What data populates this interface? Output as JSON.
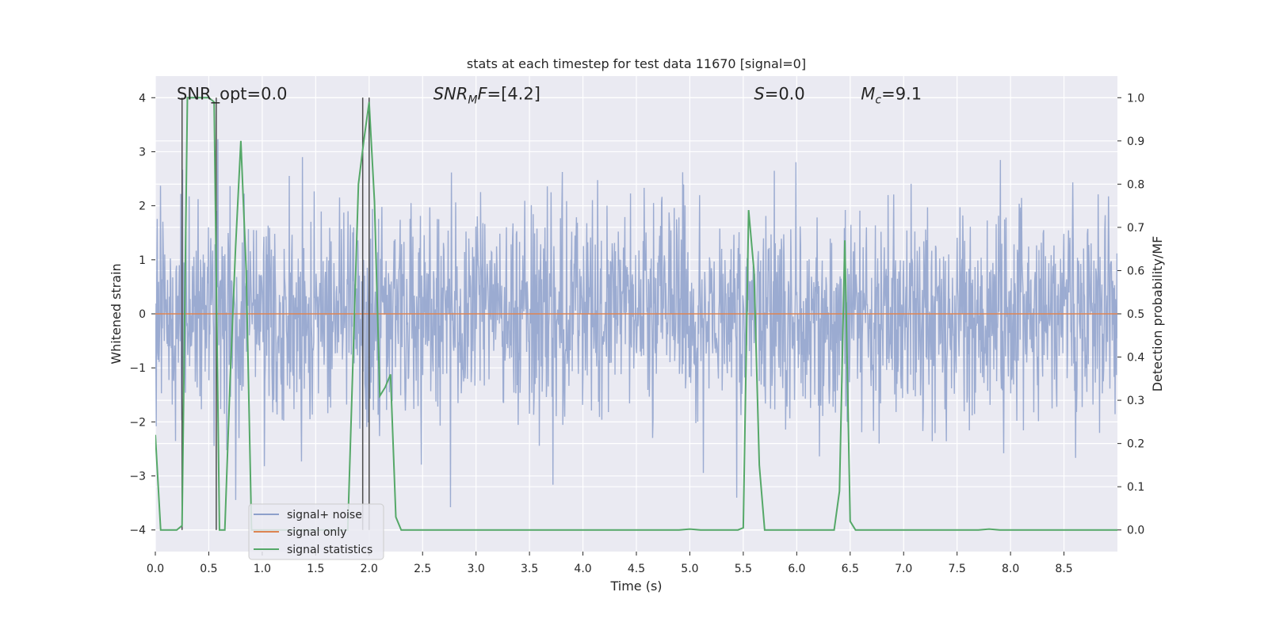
{
  "chart_data": {
    "type": "line",
    "title": "stats at each timestep for test data 11670 [signal=0]",
    "xlabel": "Time (s)",
    "ylabel": "Whitened strain",
    "y2label": "Detection probability/MF",
    "xlim": [
      0.0,
      9.0
    ],
    "ylim": [
      -4.4,
      4.4
    ],
    "y2lim": [
      -0.05,
      1.05
    ],
    "x_ticks": [
      "0.0",
      "0.5",
      "1.0",
      "1.5",
      "2.0",
      "2.5",
      "3.0",
      "3.5",
      "4.0",
      "4.5",
      "5.0",
      "5.5",
      "6.0",
      "6.5",
      "7.0",
      "7.5",
      "8.0",
      "8.5"
    ],
    "y_ticks": [
      "−4",
      "−3",
      "−2",
      "−1",
      "0",
      "1",
      "2",
      "3",
      "4"
    ],
    "y2_ticks": [
      "0.0",
      "0.1",
      "0.2",
      "0.3",
      "0.4",
      "0.5",
      "0.6",
      "0.7",
      "0.8",
      "0.9",
      "1.0"
    ],
    "grid": true,
    "legend_position": "lower-left",
    "annotations": [
      {
        "text": "SNR_opt=0.0",
        "x": 0.2,
        "y": 4.0
      },
      {
        "text": "=[4.2]",
        "prefix": "SNR",
        "sub": "M",
        "suffix": "F",
        "x": 2.6,
        "y": 4.0
      },
      {
        "text": "=0.0",
        "prefix": "S",
        "x": 5.6,
        "y": 4.0
      },
      {
        "text": "=9.1",
        "prefix": "M",
        "sub": "c",
        "x": 6.6,
        "y": 4.0
      }
    ],
    "series": [
      {
        "name": "signal+ noise",
        "color": "#8da0cb",
        "kind": "noise",
        "amplitude_sd": 1.0,
        "range": [
          -4.0,
          4.0
        ]
      },
      {
        "name": "signal only",
        "color": "#dd8452",
        "x": [
          0.0,
          9.0
        ],
        "y": [
          0.0,
          0.0
        ]
      },
      {
        "name": "signal statistics",
        "color": "#55a868",
        "axis": "right",
        "x": [
          0.0,
          0.05,
          0.1,
          0.15,
          0.2,
          0.25,
          0.3,
          0.35,
          0.4,
          0.45,
          0.5,
          0.55,
          0.6,
          0.65,
          0.7,
          0.75,
          0.8,
          0.85,
          0.9,
          0.95,
          1.0,
          1.5,
          1.8,
          1.9,
          1.95,
          2.0,
          2.05,
          2.1,
          2.15,
          2.2,
          2.25,
          2.3,
          3.0,
          4.0,
          4.9,
          5.0,
          5.1,
          5.45,
          5.5,
          5.55,
          5.6,
          5.65,
          5.7,
          5.8,
          6.0,
          6.35,
          6.4,
          6.45,
          6.5,
          6.55,
          6.6,
          6.7,
          7.0,
          7.7,
          7.8,
          7.9,
          9.0
        ],
        "y": [
          0.22,
          0.0,
          0.0,
          0.0,
          0.0,
          0.01,
          1.0,
          1.0,
          1.0,
          1.0,
          1.0,
          0.99,
          0.0,
          0.0,
          0.35,
          0.65,
          0.9,
          0.6,
          0.0,
          0.0,
          0.0,
          0.0,
          0.0,
          0.8,
          0.9,
          0.99,
          0.76,
          0.31,
          0.33,
          0.36,
          0.03,
          0.0,
          0.0,
          0.0,
          0.0,
          0.002,
          0.0,
          0.0,
          0.005,
          0.74,
          0.6,
          0.15,
          0.0,
          0.0,
          0.0,
          0.0,
          0.09,
          0.67,
          0.02,
          0.0,
          0.0,
          0.0,
          0.0,
          0.0,
          0.002,
          0.0,
          0.0
        ]
      }
    ],
    "vertical_markers": [
      {
        "x": 0.25,
        "y_from": -4.0,
        "y_to": 4.0
      },
      {
        "x": 0.57,
        "y_from": -4.0,
        "y_to": 4.0
      },
      {
        "x": 1.94,
        "y_from": -4.0,
        "y_to": 4.0
      },
      {
        "x": 2.0,
        "y_from": -4.0,
        "y_to": 4.0
      }
    ]
  }
}
